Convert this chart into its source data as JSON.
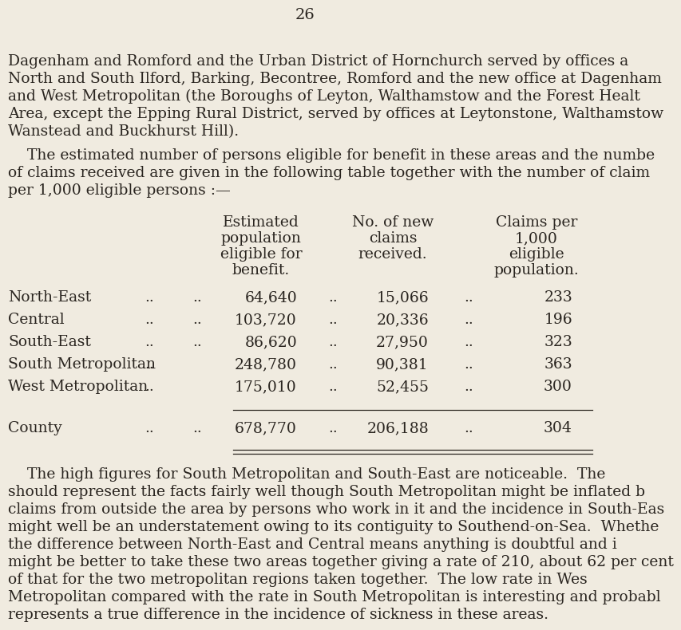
{
  "page_number": "26",
  "bg_color": "#f0ebe0",
  "text_color": "#2a2520",
  "font_size_body": 13.5,
  "font_size_page_num": 14,
  "para1_lines": [
    "Dagenham and Romford and the Urban District of Hornchurch served by offices a",
    "North and South Ilford, Barking, Becontree, Romford and the new office at Dagenham",
    "and West Metropolitan (the Boroughs of Leyton, Walthamstow and the Forest Healt",
    "Area, except the Epping Rural District, served by offices at Leytonstone, Walthamstow",
    "Wanstead and Buckhurst Hill)."
  ],
  "para2_lines": [
    "    The estimated number of persons eligible for benefit in these areas and the numbe",
    "of claims received are given in the following table together with the number of claim",
    "per 1,000 eligible persons :—"
  ],
  "col_header1": [
    "Estimated",
    "population",
    "eligible for",
    "benefit."
  ],
  "col_header2": [
    "No. of new",
    "claims",
    "received."
  ],
  "col_header3": [
    "Claims per",
    "1,000",
    "eligible",
    "population."
  ],
  "table_rows": [
    {
      "name": "North-East",
      "dots1": "..",
      "dots2": "..",
      "pop": "64,640",
      "dots3": "..",
      "claims": "15,066",
      "dots4": "..",
      "rate": "233"
    },
    {
      "name": "Central",
      "dots1": "..",
      "dots2": "..",
      "pop": "103,720",
      "dots3": "..",
      "claims": "20,336",
      "dots4": "..",
      "rate": "196"
    },
    {
      "name": "South-East",
      "dots1": "..",
      "dots2": "..",
      "pop": "86,620",
      "dots3": "..",
      "claims": "27,950",
      "dots4": "..",
      "rate": "323"
    },
    {
      "name": "South Metropolitan",
      "dots1": "..",
      "dots2": "",
      "pop": "248,780",
      "dots3": "..",
      "claims": "90,381",
      "dots4": "..",
      "rate": "363"
    },
    {
      "name": "West Metropolitan",
      "dots1": "..",
      "dots2": "",
      "pop": "175,010",
      "dots3": "..",
      "claims": "52,455",
      "dots4": "..",
      "rate": "300"
    }
  ],
  "county_row": {
    "name": "County",
    "dots1": "..",
    "dots2": "..",
    "pop": "678,770",
    "dots3": "..",
    "claims": "206,188",
    "dots4": "..",
    "rate": "304"
  },
  "para3_lines": [
    "    The high figures for South Metropolitan and South-East are noticeable.  The",
    "should represent the facts fairly well though South Metropolitan might be inflated b",
    "claims from outside the area by persons who work in it and the incidence in South-Eas",
    "might well be an understatement owing to its contiguity to Southend-on-Sea.  Whethe",
    "the difference between North-East and Central means anything is doubtful and i",
    "might be better to take these two areas together giving a rate of 210, about 62 per cent",
    "of that for the two metropolitan regions taken together.  The low rate in Wes",
    "Metropolitan compared with the rate in South Metropolitan is interesting and probabl",
    "represents a true difference in the incidence of sickness in these areas."
  ]
}
